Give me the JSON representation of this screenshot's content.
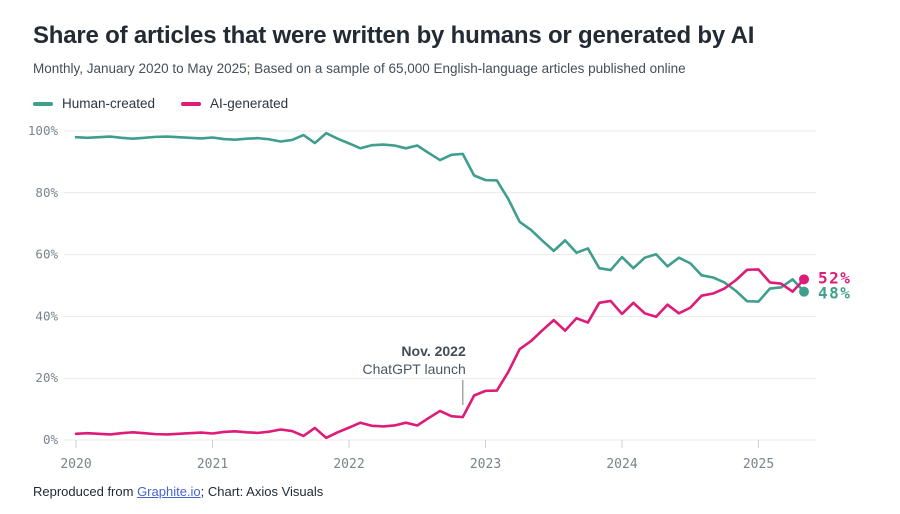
{
  "header": {
    "title": "Share of articles that were written by humans or generated by AI",
    "subtitle": "Monthly, January 2020 to May 2025; Based on a sample of 65,000 English-language articles published online"
  },
  "legend": [
    {
      "label": "Human-created",
      "color": "#3f9e8d"
    },
    {
      "label": "AI-generated",
      "color": "#de1b78"
    }
  ],
  "chart_data": {
    "type": "line",
    "title": "Share of articles that were written by humans or generated by AI",
    "subtitle": "Monthly, January 2020 to May 2025; Based on a sample of 65,000 English-language articles published online",
    "x_unit": "month",
    "x_start": "2020-01",
    "x_end": "2025-05",
    "x_tick_labels": [
      "2020",
      "2021",
      "2022",
      "2023",
      "2024",
      "2025"
    ],
    "y_tick_labels": [
      "0%",
      "20%",
      "40%",
      "60%",
      "80%",
      "100%"
    ],
    "ylim": [
      0,
      100
    ],
    "grid": "horizontal",
    "legend_position": "top-left",
    "series": [
      {
        "id": "human-created",
        "name": "Human-created",
        "color": "#3f9e8d",
        "end_label": "48%",
        "values": [
          98.0,
          97.8,
          98.0,
          98.2,
          97.8,
          97.5,
          97.8,
          98.1,
          98.2,
          98.0,
          97.8,
          97.6,
          97.9,
          97.4,
          97.2,
          97.5,
          97.7,
          97.3,
          96.6,
          97.1,
          98.7,
          96.1,
          99.3,
          97.5,
          96.0,
          94.4,
          95.4,
          95.6,
          95.3,
          94.4,
          95.3,
          92.9,
          90.6,
          92.3,
          92.6,
          85.6,
          84.1,
          84.0,
          78.0,
          70.6,
          68.0,
          64.5,
          61.2,
          64.6,
          60.6,
          62.0,
          55.6,
          55.0,
          59.2,
          55.6,
          59.0,
          60.1,
          56.2,
          59.0,
          57.2,
          53.3,
          52.6,
          51.0,
          48.3,
          44.9,
          44.8,
          49.0,
          49.4,
          52.0,
          48.0
        ]
      },
      {
        "id": "ai-generated",
        "name": "AI-generated",
        "color": "#de1b78",
        "end_label": "52%",
        "values": [
          2.0,
          2.2,
          2.0,
          1.8,
          2.2,
          2.5,
          2.2,
          1.9,
          1.8,
          2.0,
          2.2,
          2.4,
          2.1,
          2.6,
          2.8,
          2.5,
          2.3,
          2.7,
          3.4,
          2.9,
          1.3,
          3.9,
          0.7,
          2.5,
          4.0,
          5.6,
          4.6,
          4.4,
          4.7,
          5.6,
          4.7,
          7.1,
          9.4,
          7.7,
          7.4,
          14.4,
          15.9,
          16.0,
          22.0,
          29.4,
          32.0,
          35.5,
          38.8,
          35.4,
          39.4,
          38.0,
          44.4,
          45.0,
          40.8,
          44.4,
          41.0,
          39.9,
          43.8,
          41.0,
          42.8,
          46.7,
          47.4,
          49.0,
          51.7,
          55.1,
          55.2,
          51.0,
          50.6,
          48.0,
          52.0
        ]
      }
    ],
    "annotation": {
      "title": "Nov. 2022",
      "label": "ChatGPT launch",
      "month_index": 34
    }
  },
  "footer": {
    "prefix": "Reproduced from ",
    "link_text": "Graphite.io",
    "suffix": "; Chart: Axios Visuals"
  }
}
